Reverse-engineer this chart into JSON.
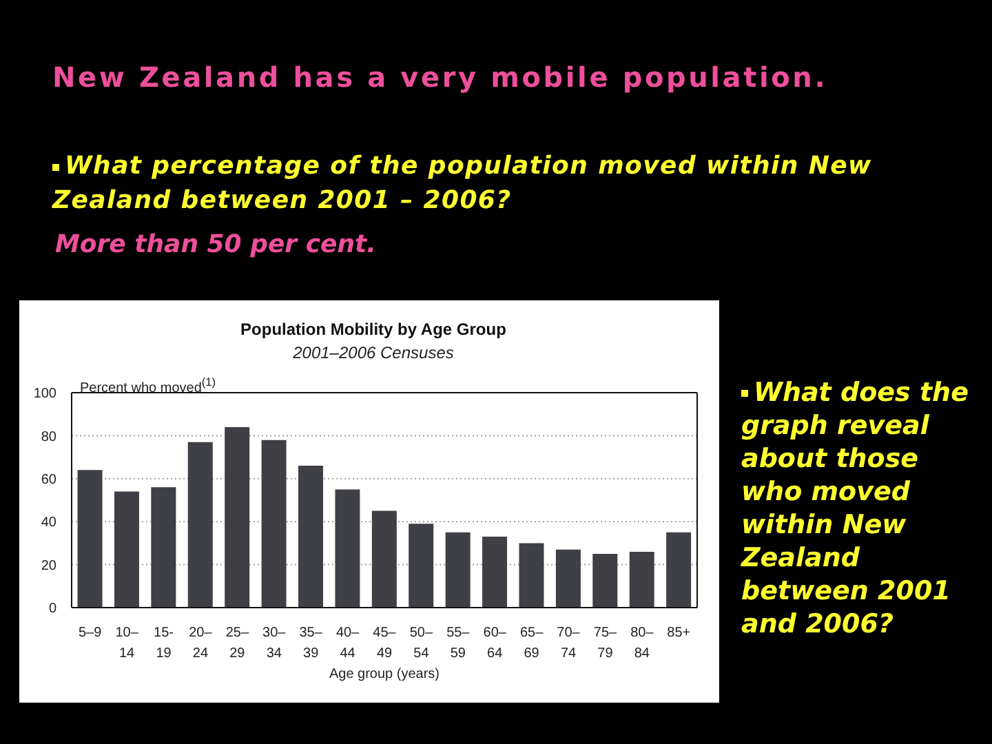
{
  "chart_data": {
    "type": "bar",
    "title": "Population Mobility by Age Group",
    "subtitle": "2001–2006 Censuses",
    "ylabel": "Percent who moved$^{(1)}$",
    "xlabel": "Age group (years)",
    "categories": [
      "5–9",
      "10–14",
      "15-19",
      "20–24",
      "25–29",
      "30–34",
      "35–39",
      "40–44",
      "45–49",
      "50–54",
      "55–59",
      "60–64",
      "65–69",
      "70–74",
      "75–79",
      "80–84",
      "85+"
    ],
    "values": [
      64,
      54,
      56,
      77,
      84,
      78,
      66,
      55,
      45,
      39,
      35,
      33,
      30,
      27,
      25,
      26,
      35
    ],
    "color": "#3f3f46",
    "ylim": [
      0,
      100
    ],
    "yticks": [
      0,
      20,
      40,
      60,
      80,
      100
    ],
    "grid": "y",
    "annotations": [
      "New Zealand has a very mobile population.",
      "What percentage of the population moved within New Zealand between 2001 – 2006?",
      "More than 50 per cent.",
      "What does the graph reveal about those who moved within New Zealand between 2001 and 2006?"
    ]
  }
}
